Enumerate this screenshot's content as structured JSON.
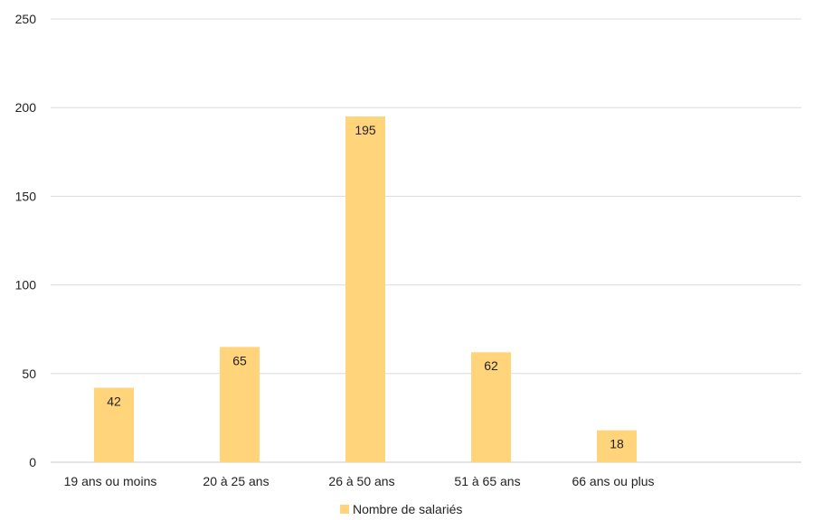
{
  "chart_data": {
    "type": "bar",
    "categories": [
      "19 ans ou moins",
      "20 à 25 ans",
      "26 à 50 ans",
      "51 à 65 ans",
      "66 ans ou plus"
    ],
    "series": [
      {
        "name": "Nombre de salariés",
        "values": [
          42,
          65,
          195,
          62,
          18
        ],
        "color": "#FFD47A"
      }
    ],
    "ylim": [
      0,
      250
    ],
    "yticks": [
      "0",
      "50",
      "100",
      "150",
      "200",
      "250"
    ],
    "grid": true,
    "legend": "bottom",
    "data_labels": true
  }
}
